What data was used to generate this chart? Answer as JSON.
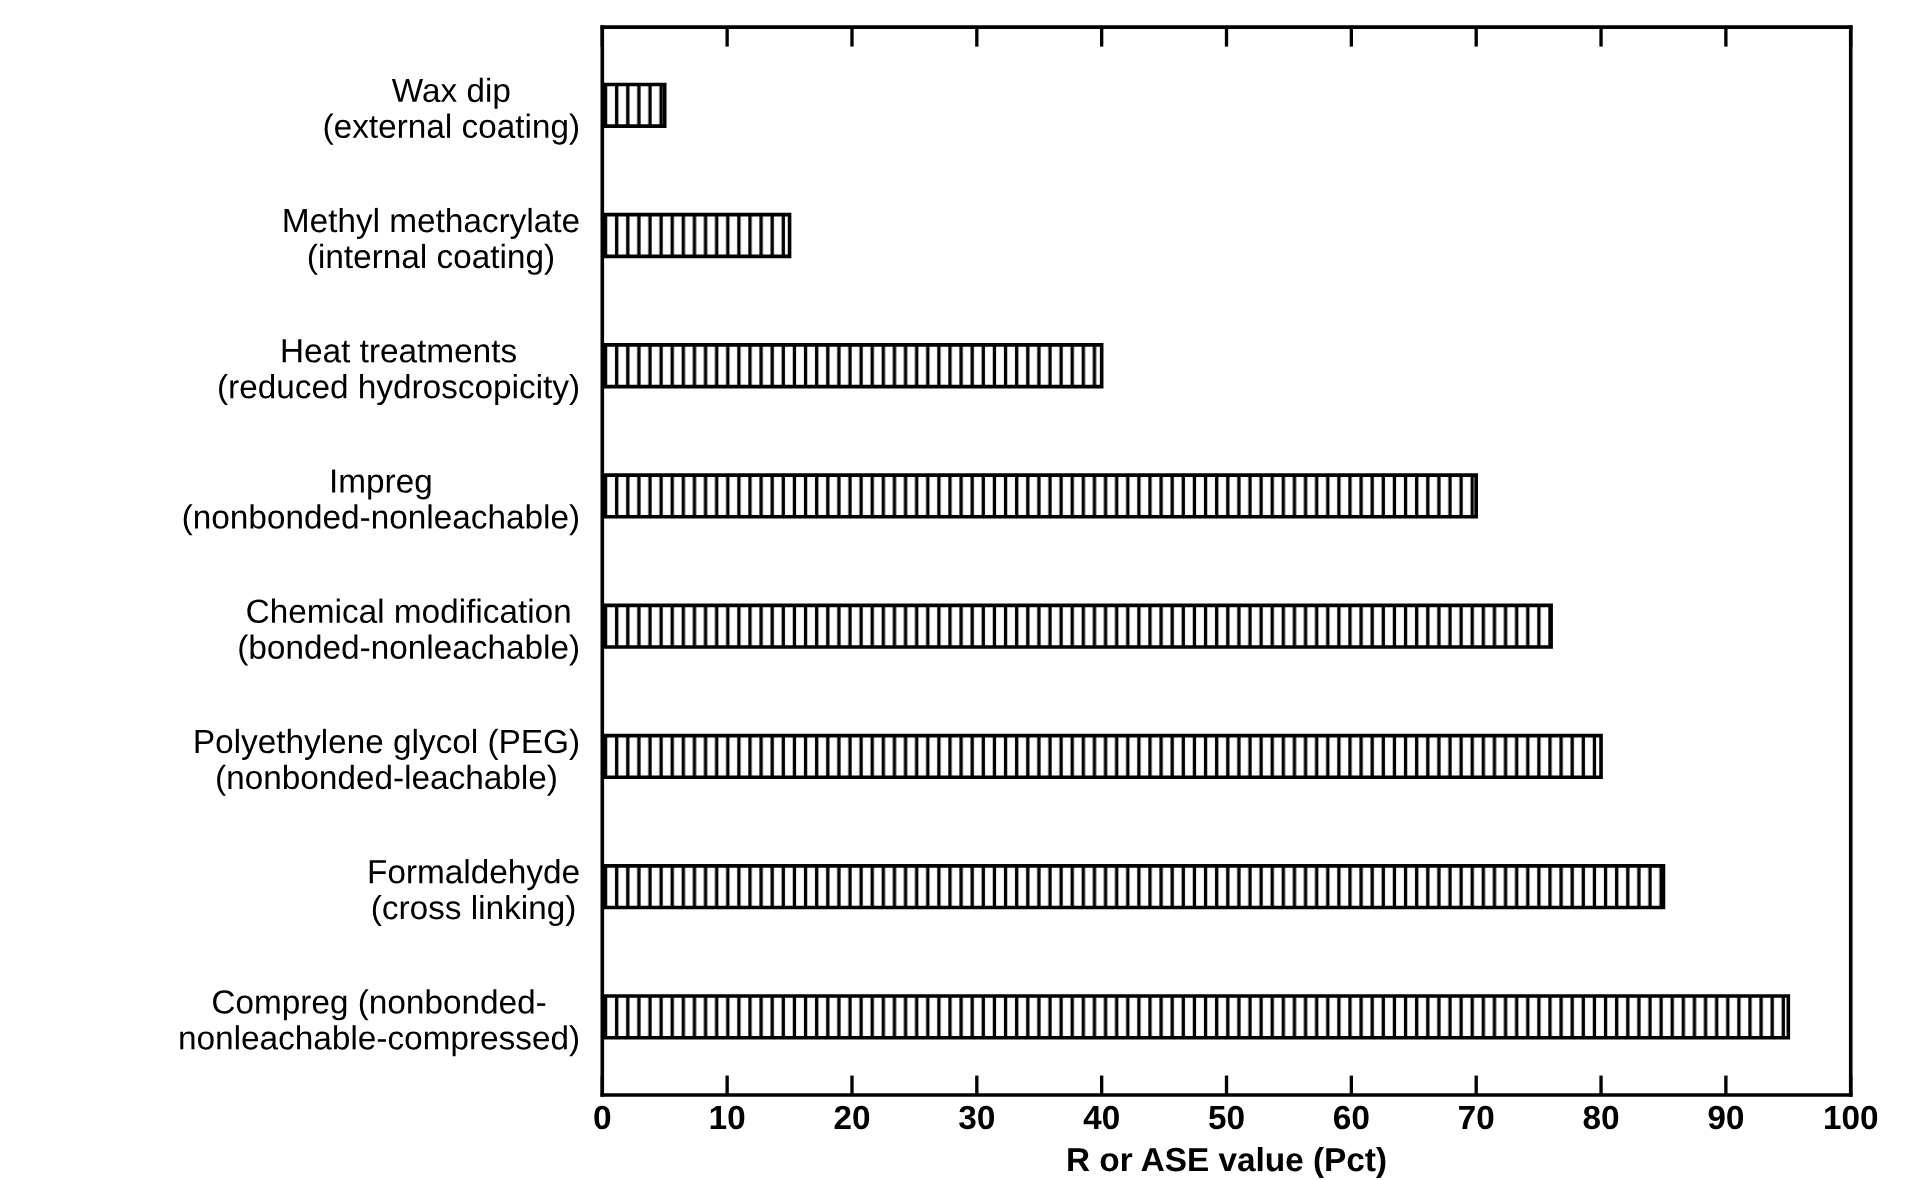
{
  "chart_data": {
    "type": "bar",
    "orientation": "horizontal",
    "xlabel": "R or ASE value (Pct)",
    "categories": [
      "Wax dip\n(external coating)",
      "Methyl methacrylate\n(internal coating)",
      "Heat treatments\n(reduced hydroscopicity)",
      "Impreg\n(nonbonded-nonleachable)",
      "Chemical modification\n(bonded-nonleachable)",
      "Polyethylene glycol (PEG)\n(nonbonded-leachable)",
      "Formaldehyde\n(cross linking)",
      "Compreg (nonbonded-\nnonleachable-compressed)"
    ],
    "values": [
      5,
      15,
      40,
      70,
      76,
      80,
      85,
      95
    ],
    "color": "#000000",
    "xlim": [
      0,
      100
    ],
    "xticks": [
      0,
      10,
      20,
      30,
      40,
      50,
      60,
      70,
      80,
      90,
      100
    ],
    "grid": false,
    "legend": false
  }
}
